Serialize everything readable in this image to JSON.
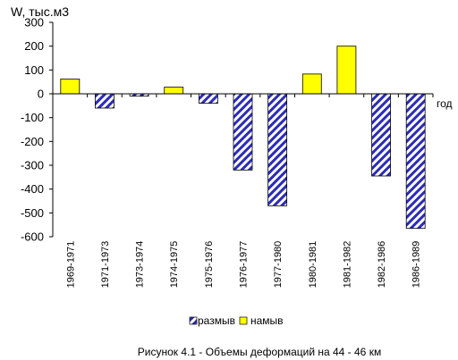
{
  "chart_data": {
    "type": "bar",
    "ylabel": "W, тыс.м3",
    "xlabel": "год",
    "caption": "Рисунок 4.1 - Объемы деформаций на 44 - 46 км",
    "ylim": [
      -600,
      300
    ],
    "yticks": [
      "300",
      "200",
      "100",
      "0",
      "-100",
      "-200",
      "-300",
      "-400",
      "-500",
      "-600"
    ],
    "categories": [
      "1969-1971",
      "1971-1973",
      "1973-1974",
      "1974-1975",
      "1975-1976",
      "1976-1977",
      "1977-1980",
      "1980-1981",
      "1981-1982",
      "1982-1986",
      "1986-1989"
    ],
    "legend_position": "bottom",
    "series": [
      {
        "name": "размыв",
        "color": "#2b2bb8",
        "pattern": "diagonal-hatch",
        "values": [
          null,
          -60,
          -10,
          null,
          -40,
          -320,
          -470,
          null,
          null,
          -345,
          -565
        ]
      },
      {
        "name": "намыв",
        "color": "#ffff00",
        "values": [
          62,
          null,
          null,
          28,
          null,
          null,
          null,
          83,
          200,
          null,
          null
        ]
      }
    ]
  }
}
